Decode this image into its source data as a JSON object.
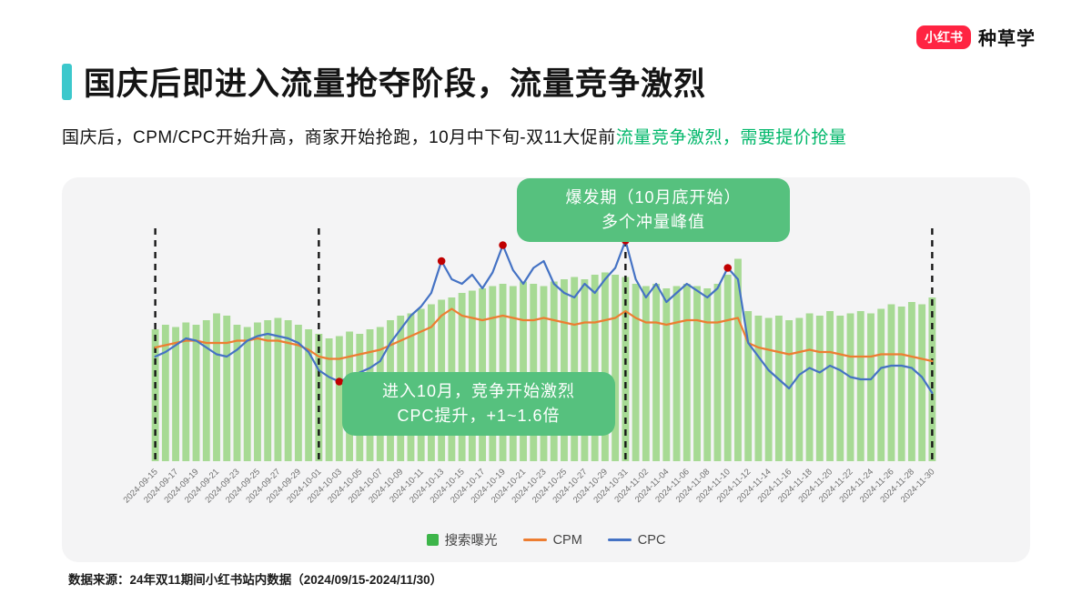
{
  "logo": {
    "brand": "小红书",
    "suffix": "种草学",
    "brand_color": "#ff2442"
  },
  "header": {
    "title": "国庆后即进入流量抢夺阶段，流量竞争激烈",
    "subtitle_black": "国庆后，CPM/CPC开始升高，商家开始抢跑，10月中下旬-双11大促前",
    "subtitle_green": "流量竞争激烈，需要提价抢量",
    "accent_color": "#3cc8cc",
    "highlight_color": "#00b76a"
  },
  "callouts": [
    {
      "line1": "爆发期（10月底开始）",
      "line2": "多个冲量峰值"
    },
    {
      "line1": "进入10月，竞争开始激烈",
      "line2": "CPC提升，+1~1.6倍"
    }
  ],
  "legend": [
    {
      "label": "搜索曝光",
      "type": "bar",
      "color": "#3db54a"
    },
    {
      "label": "CPM",
      "type": "line",
      "color": "#ed7d31"
    },
    {
      "label": "CPC",
      "type": "line",
      "color": "#4472c4"
    }
  ],
  "footer": {
    "source": "数据来源：24年双11期间小红书站内数据（2024/09/15-2024/11/30）"
  },
  "chart_data": {
    "type": "bar+line combo",
    "title": "",
    "xlabel": "",
    "ylabel": "",
    "ylim": [
      0,
      100
    ],
    "grid": false,
    "legend_position": "bottom",
    "marker_color": "#c00000",
    "dashed_line_color": "#161616",
    "x_tick_labels": [
      "2024-09-15",
      "2024-09-17",
      "2024-09-19",
      "2024-09-21",
      "2024-09-23",
      "2024-09-25",
      "2024-09-27",
      "2024-09-29",
      "2024-10-01",
      "2024-10-03",
      "2024-10-05",
      "2024-10-07",
      "2024-10-09",
      "2024-10-11",
      "2024-10-13",
      "2024-10-15",
      "2024-10-17",
      "2024-10-19",
      "2024-10-21",
      "2024-10-23",
      "2024-10-25",
      "2024-10-27",
      "2024-10-29",
      "2024-10-31",
      "2024-11-02",
      "2024-11-04",
      "2024-11-06",
      "2024-11-08",
      "2024-11-10",
      "2024-11-12",
      "2024-11-14",
      "2024-11-16",
      "2024-11-18",
      "2024-11-20",
      "2024-11-22",
      "2024-11-24",
      "2024-11-26",
      "2024-11-28",
      "2024-11-30"
    ],
    "series": [
      {
        "name": "搜索曝光",
        "type": "bar",
        "color": "#a7da94",
        "values": [
          58,
          60,
          59,
          61,
          60,
          62,
          65,
          64,
          60,
          59,
          61,
          62,
          63,
          62,
          60,
          58,
          56,
          54,
          55,
          57,
          56,
          58,
          59,
          62,
          64,
          65,
          67,
          69,
          71,
          72,
          74,
          75,
          76,
          77,
          78,
          77,
          79,
          78,
          77,
          79,
          80,
          81,
          80,
          82,
          83,
          82,
          81,
          78,
          77,
          78,
          76,
          77,
          78,
          77,
          76,
          78,
          82,
          89,
          66,
          64,
          63,
          64,
          62,
          63,
          65,
          64,
          66,
          64,
          65,
          66,
          65,
          67,
          69,
          68,
          70,
          69,
          72
        ]
      },
      {
        "name": "CPM",
        "type": "line",
        "color": "#ed7d31",
        "values": [
          50,
          51,
          52,
          53,
          53,
          52,
          52,
          52,
          53,
          53,
          54,
          53,
          53,
          52,
          51,
          49,
          46,
          45,
          45,
          46,
          47,
          48,
          49,
          51,
          53,
          55,
          57,
          59,
          64,
          67,
          64,
          63,
          62,
          63,
          64,
          63,
          62,
          62,
          63,
          62,
          61,
          60,
          61,
          61,
          62,
          63,
          66,
          63,
          61,
          61,
          60,
          61,
          62,
          62,
          61,
          61,
          62,
          63,
          52,
          50,
          49,
          48,
          47,
          48,
          49,
          48,
          48,
          47,
          46,
          46,
          46,
          47,
          47,
          47,
          46,
          45,
          44
        ]
      },
      {
        "name": "CPC",
        "type": "line",
        "color": "#4472c4",
        "values": [
          46,
          48,
          51,
          54,
          53,
          50,
          47,
          46,
          49,
          53,
          55,
          56,
          55,
          54,
          52,
          48,
          40,
          37,
          35,
          37,
          39,
          41,
          44,
          52,
          58,
          64,
          68,
          74,
          88,
          80,
          78,
          82,
          76,
          83,
          95,
          84,
          78,
          85,
          88,
          78,
          74,
          72,
          78,
          74,
          80,
          85,
          97,
          80,
          72,
          78,
          70,
          74,
          78,
          75,
          72,
          76,
          85,
          80,
          52,
          46,
          40,
          36,
          32,
          38,
          41,
          39,
          42,
          40,
          37,
          36,
          36,
          41,
          42,
          42,
          41,
          37,
          30
        ]
      }
    ],
    "peak_marker_indices": [
      18,
      28,
      34,
      46,
      56
    ],
    "dashed_line_indices": [
      0,
      16,
      46,
      76
    ]
  }
}
